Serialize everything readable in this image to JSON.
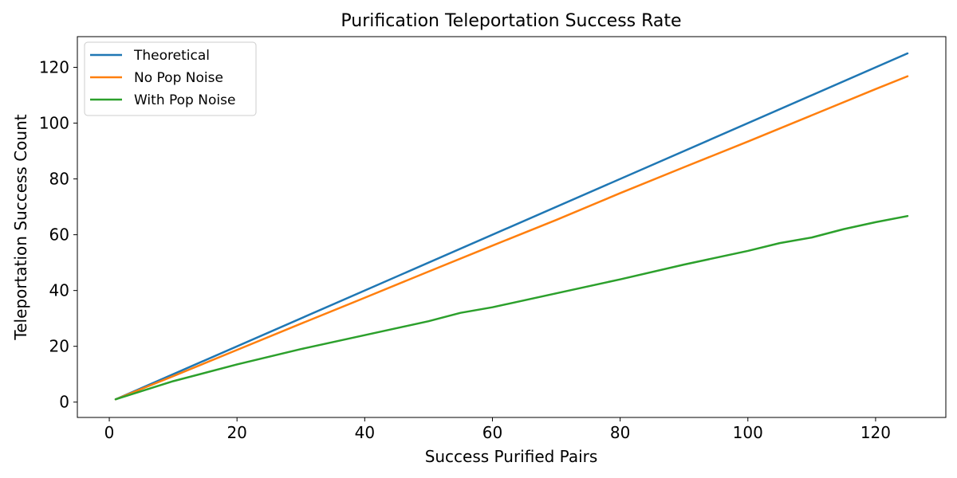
{
  "chart_data": {
    "type": "line",
    "title": "Purification Teleportation Success Rate",
    "xlabel": "Success Purified Pairs",
    "ylabel": "Teleportation Success Count",
    "xlim": [
      -5,
      131
    ],
    "ylim": [
      -5.5,
      131
    ],
    "xticks": [
      0,
      20,
      40,
      60,
      80,
      100,
      120
    ],
    "yticks": [
      0,
      20,
      40,
      60,
      80,
      100,
      120
    ],
    "grid": false,
    "legend_position": "top-left",
    "series": [
      {
        "name": "Theoretical",
        "color": "#1f77b4",
        "points": [
          [
            1,
            1
          ],
          [
            125,
            125
          ]
        ]
      },
      {
        "name": "No Pop Noise",
        "color": "#ff7f0e",
        "points": [
          [
            1,
            1
          ],
          [
            10,
            9.3
          ],
          [
            20,
            18.7
          ],
          [
            30,
            28.1
          ],
          [
            40,
            37.4
          ],
          [
            50,
            46.8
          ],
          [
            60,
            56.1
          ],
          [
            70,
            65.3
          ],
          [
            80,
            74.9
          ],
          [
            90,
            84.2
          ],
          [
            100,
            93.4
          ],
          [
            110,
            102.8
          ],
          [
            120,
            112.2
          ],
          [
            125,
            116.8
          ]
        ]
      },
      {
        "name": "With Pop Noise",
        "color": "#2ca02c",
        "points": [
          [
            1,
            1
          ],
          [
            10,
            7.5
          ],
          [
            20,
            13.5
          ],
          [
            30,
            19
          ],
          [
            40,
            24
          ],
          [
            50,
            29
          ],
          [
            55,
            32
          ],
          [
            60,
            34
          ],
          [
            70,
            39
          ],
          [
            80,
            44
          ],
          [
            90,
            49.3
          ],
          [
            100,
            54.2
          ],
          [
            105,
            57
          ],
          [
            110,
            59
          ],
          [
            115,
            62
          ],
          [
            120,
            64.5
          ],
          [
            125,
            66.7
          ]
        ]
      }
    ]
  }
}
